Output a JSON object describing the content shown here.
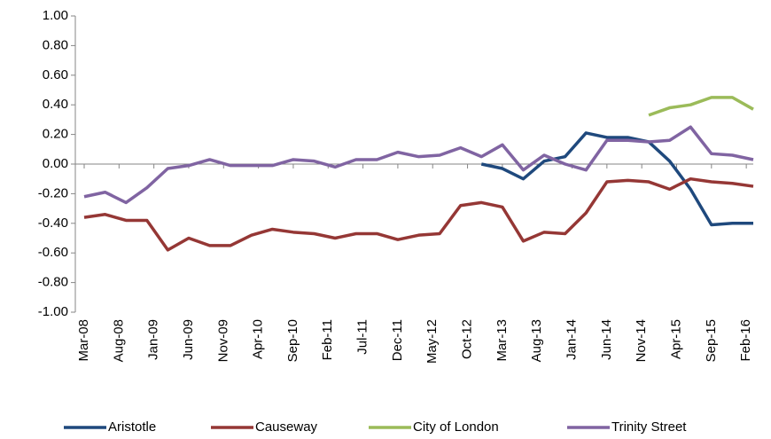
{
  "chart_data": {
    "type": "line",
    "x": [
      "Mar-08",
      "Jun-08",
      "Sep-08",
      "Dec-08",
      "Mar-09",
      "Jun-09",
      "Sep-09",
      "Dec-09",
      "Mar-10",
      "Jun-10",
      "Sep-10",
      "Dec-10",
      "Mar-11",
      "Jun-11",
      "Sep-11",
      "Dec-11",
      "Mar-12",
      "Jun-12",
      "Sep-12",
      "Dec-12",
      "Mar-13",
      "Jun-13",
      "Sep-13",
      "Dec-13",
      "Mar-14",
      "Jun-14",
      "Sep-14",
      "Dec-14",
      "Mar-15",
      "Jun-15",
      "Sep-15",
      "Dec-15",
      "Mar-16"
    ],
    "xlim": [
      "Mar-08",
      "Mar-16"
    ],
    "xticks": [
      "Mar-08",
      "Aug-08",
      "Jan-09",
      "Jun-09",
      "Nov-09",
      "Apr-10",
      "Sep-10",
      "Feb-11",
      "Jul-11",
      "Dec-11",
      "May-12",
      "Oct-12",
      "Mar-13",
      "Aug-13",
      "Jan-14",
      "Jun-14",
      "Nov-14",
      "Apr-15",
      "Sep-15",
      "Feb-16"
    ],
    "ylim": [
      -1,
      1
    ],
    "yticks": [
      {
        "value": -1,
        "label": "-1.00"
      },
      {
        "value": -0.8,
        "label": "-0.80"
      },
      {
        "value": -0.6,
        "label": "-0.60"
      },
      {
        "value": -0.4,
        "label": "-0.40"
      },
      {
        "value": -0.2,
        "label": "-0.20"
      },
      {
        "value": 0,
        "label": "0.00"
      },
      {
        "value": 0.2,
        "label": "0.20"
      },
      {
        "value": 0.4,
        "label": "0.40"
      },
      {
        "value": 0.6,
        "label": "0.60"
      },
      {
        "value": 0.8,
        "label": "0.80"
      },
      {
        "value": 1,
        "label": "1.00"
      }
    ],
    "grid": false,
    "legend": "bottom",
    "series": [
      {
        "name": "Aristotle",
        "color": "#1F497D",
        "values": [
          null,
          null,
          null,
          null,
          null,
          null,
          null,
          null,
          null,
          null,
          null,
          null,
          null,
          null,
          null,
          null,
          null,
          null,
          null,
          0.0,
          -0.03,
          -0.1,
          0.02,
          0.05,
          0.21,
          0.18,
          0.18,
          0.15,
          0.02,
          -0.17,
          -0.41,
          -0.4,
          -0.4
        ]
      },
      {
        "name": "Causeway",
        "color": "#953735",
        "values": [
          -0.36,
          -0.34,
          -0.38,
          -0.38,
          -0.58,
          -0.5,
          -0.55,
          -0.55,
          -0.48,
          -0.44,
          -0.46,
          -0.47,
          -0.5,
          -0.47,
          -0.47,
          -0.51,
          -0.48,
          -0.47,
          -0.28,
          -0.26,
          -0.29,
          -0.52,
          -0.46,
          -0.47,
          -0.33,
          -0.12,
          -0.11,
          -0.12,
          -0.17,
          -0.1,
          -0.12,
          -0.13,
          -0.15
        ]
      },
      {
        "name": "City of London",
        "color": "#9BBB59",
        "values": [
          null,
          null,
          null,
          null,
          null,
          null,
          null,
          null,
          null,
          null,
          null,
          null,
          null,
          null,
          null,
          null,
          null,
          null,
          null,
          null,
          null,
          null,
          null,
          null,
          null,
          null,
          null,
          0.33,
          0.38,
          0.4,
          0.45,
          0.45,
          0.37
        ]
      },
      {
        "name": "Trinity Street",
        "color": "#8064A2",
        "values": [
          -0.22,
          -0.19,
          -0.26,
          -0.16,
          -0.03,
          -0.01,
          0.03,
          -0.01,
          -0.01,
          -0.01,
          0.03,
          0.02,
          -0.02,
          0.03,
          0.03,
          0.08,
          0.05,
          0.06,
          0.11,
          0.05,
          0.13,
          -0.04,
          0.06,
          0.0,
          -0.04,
          0.16,
          0.16,
          0.15,
          0.16,
          0.25,
          0.07,
          0.06,
          0.03
        ]
      }
    ]
  }
}
